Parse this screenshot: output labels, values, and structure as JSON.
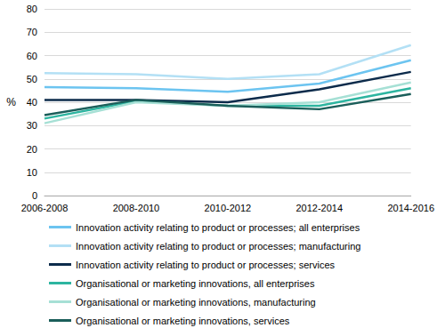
{
  "chart_data": {
    "type": "line",
    "y_label": "%",
    "categories": [
      "2006-2008",
      "2008-2010",
      "2010-2012",
      "2012-2014",
      "2014-2016"
    ],
    "series": [
      {
        "name": "Innovation activity relating to product or processes; all enterprises",
        "color": "#6cc4f0",
        "values": [
          46.5,
          46,
          44.5,
          48,
          58
        ]
      },
      {
        "name": "Innovation activity relating to product or processes; manufacturing",
        "color": "#b3e0f5",
        "values": [
          52.5,
          52,
          50,
          52,
          64.5
        ]
      },
      {
        "name": "Innovation activity relating to product or processes; services",
        "color": "#0c2b4b",
        "values": [
          41,
          41,
          40,
          45.5,
          53
        ]
      },
      {
        "name": "Organisational or marketing innovations, all enterprises",
        "color": "#2db5a0",
        "values": [
          33,
          40.5,
          38.5,
          38.5,
          46
        ]
      },
      {
        "name": "Organisational or marketing innovations, manufacturing",
        "color": "#a6e0d5",
        "values": [
          31,
          40,
          38.5,
          40,
          48.5
        ]
      },
      {
        "name": "Organisational or marketing innovations, services",
        "color": "#1b5e5a",
        "values": [
          34.5,
          41,
          38.5,
          37,
          43.5
        ]
      }
    ],
    "ylim": [
      0,
      80
    ],
    "yticks": [
      0,
      10,
      20,
      30,
      40,
      50,
      60,
      70,
      80
    ],
    "grid": true,
    "legend": "bottom"
  }
}
